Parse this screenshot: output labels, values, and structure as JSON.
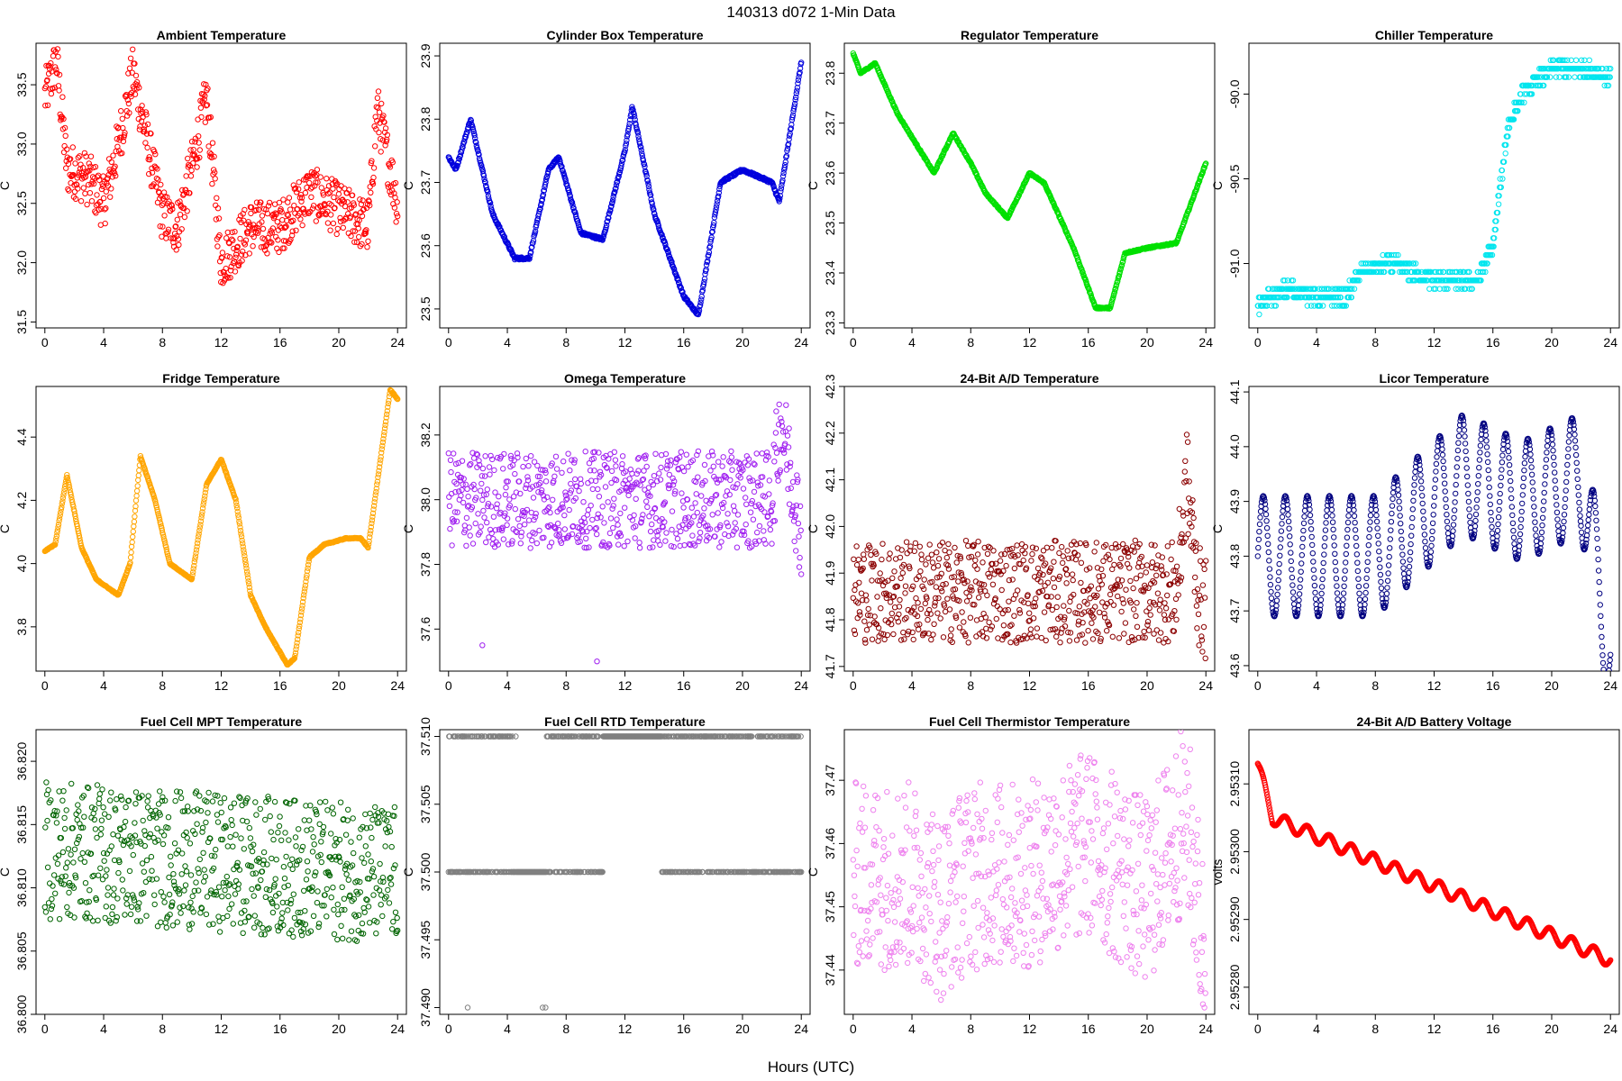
{
  "figure_title": "140313   d072   1-Min Data",
  "shared_xlabel": "Hours (UTC)",
  "chart_data": [
    {
      "type": "scatter",
      "title": "Ambient Temperature",
      "ylabel": "C",
      "color": "#ff0000",
      "xlim": [
        -0.6,
        24.6
      ],
      "ylim": [
        31.45,
        33.85
      ],
      "xticks": [
        0,
        4,
        8,
        12,
        16,
        20,
        24
      ],
      "yticks": [
        "31.5",
        "32.0",
        "32.5",
        "33.0",
        "33.5"
      ],
      "anchors": [
        [
          0,
          33.4
        ],
        [
          0.8,
          33.7
        ],
        [
          1.5,
          32.8
        ],
        [
          3,
          32.7
        ],
        [
          4,
          32.5
        ],
        [
          5,
          33.0
        ],
        [
          6,
          33.6
        ],
        [
          7,
          33.0
        ],
        [
          8,
          32.4
        ],
        [
          9,
          32.3
        ],
        [
          10,
          32.8
        ],
        [
          11,
          33.4
        ],
        [
          12,
          32.0
        ],
        [
          14,
          32.3
        ],
        [
          16,
          32.3
        ],
        [
          18,
          32.6
        ],
        [
          20,
          32.45
        ],
        [
          22,
          32.3
        ],
        [
          22.6,
          33.3
        ],
        [
          24,
          32.5
        ]
      ],
      "noise": 0.45,
      "outliers": 0.12
    },
    {
      "type": "scatter",
      "title": "Cylinder Box Temperature",
      "ylabel": "C",
      "color": "#0000dd",
      "xlim": [
        -0.6,
        24.6
      ],
      "ylim": [
        23.47,
        23.92
      ],
      "xticks": [
        0,
        4,
        8,
        12,
        16,
        20,
        24
      ],
      "yticks": [
        "23.5",
        "23.6",
        "23.7",
        "23.8",
        "23.9"
      ],
      "anchors": [
        [
          0,
          23.74
        ],
        [
          0.5,
          23.72
        ],
        [
          1.5,
          23.8
        ],
        [
          3,
          23.65
        ],
        [
          4.5,
          23.58
        ],
        [
          5.5,
          23.58
        ],
        [
          6.8,
          23.72
        ],
        [
          7.5,
          23.74
        ],
        [
          9,
          23.62
        ],
        [
          10.5,
          23.61
        ],
        [
          12,
          23.75
        ],
        [
          12.5,
          23.82
        ],
        [
          14,
          23.65
        ],
        [
          16,
          23.52
        ],
        [
          17,
          23.49
        ],
        [
          18.5,
          23.7
        ],
        [
          20,
          23.72
        ],
        [
          22,
          23.7
        ],
        [
          22.5,
          23.67
        ],
        [
          24,
          23.89
        ]
      ],
      "noise": 0.004,
      "outliers": 0.0
    },
    {
      "type": "scatter",
      "title": "Regulator Temperature",
      "ylabel": "C",
      "color": "#00e000",
      "xlim": [
        -0.6,
        24.6
      ],
      "ylim": [
        23.29,
        23.86
      ],
      "xticks": [
        0,
        4,
        8,
        12,
        16,
        20,
        24
      ],
      "yticks": [
        "23.3",
        "23.4",
        "23.5",
        "23.6",
        "23.7",
        "23.8"
      ],
      "anchors": [
        [
          0,
          23.84
        ],
        [
          0.5,
          23.8
        ],
        [
          1.5,
          23.82
        ],
        [
          3,
          23.72
        ],
        [
          5.5,
          23.6
        ],
        [
          6.8,
          23.68
        ],
        [
          8,
          23.62
        ],
        [
          9,
          23.56
        ],
        [
          10.5,
          23.51
        ],
        [
          12,
          23.6
        ],
        [
          13,
          23.58
        ],
        [
          15,
          23.45
        ],
        [
          16.5,
          23.33
        ],
        [
          17.5,
          23.33
        ],
        [
          18.5,
          23.44
        ],
        [
          20,
          23.45
        ],
        [
          22,
          23.46
        ],
        [
          24,
          23.62
        ]
      ],
      "noise": 0.003,
      "outliers": 0.0
    },
    {
      "type": "scatter",
      "title": "Chiller Temperature",
      "ylabel": "C",
      "color": "#00e5ee",
      "xlim": [
        -0.6,
        24.6
      ],
      "ylim": [
        -91.38,
        -89.7
      ],
      "xticks": [
        0,
        4,
        8,
        12,
        16,
        20,
        24
      ],
      "yticks": [
        "-91.0",
        "-90.5",
        "-90.0"
      ],
      "anchors": [
        [
          0,
          -91.25
        ],
        [
          2,
          -91.15
        ],
        [
          4,
          -91.2
        ],
        [
          6,
          -91.2
        ],
        [
          7,
          -91.05
        ],
        [
          9,
          -91.0
        ],
        [
          12,
          -91.1
        ],
        [
          15,
          -91.1
        ],
        [
          16,
          -90.9
        ],
        [
          17,
          -90.2
        ],
        [
          18,
          -90.0
        ],
        [
          20,
          -89.85
        ],
        [
          22,
          -89.85
        ],
        [
          24,
          -89.9
        ]
      ],
      "noise": 0.09,
      "outliers": 0.0,
      "quant": 0.05
    },
    {
      "type": "scatter",
      "title": "Fridge Temperature",
      "ylabel": "C",
      "color": "#ffa500",
      "xlim": [
        -0.6,
        24.6
      ],
      "ylim": [
        3.66,
        4.56
      ],
      "xticks": [
        0,
        4,
        8,
        12,
        16,
        20,
        24
      ],
      "yticks": [
        "3.8",
        "4.0",
        "4.2",
        "4.4"
      ],
      "anchors": [
        [
          0,
          4.04
        ],
        [
          0.7,
          4.06
        ],
        [
          1.5,
          4.28
        ],
        [
          2.5,
          4.05
        ],
        [
          3.5,
          3.95
        ],
        [
          5,
          3.9
        ],
        [
          5.8,
          4.0
        ],
        [
          6.5,
          4.34
        ],
        [
          7.5,
          4.2
        ],
        [
          8.5,
          4.0
        ],
        [
          10,
          3.95
        ],
        [
          11,
          4.25
        ],
        [
          12,
          4.33
        ],
        [
          13,
          4.2
        ],
        [
          14,
          3.9
        ],
        [
          15,
          3.8
        ],
        [
          16.5,
          3.68
        ],
        [
          17,
          3.7
        ],
        [
          18,
          4.02
        ],
        [
          19,
          4.06
        ],
        [
          20.5,
          4.08
        ],
        [
          21.5,
          4.08
        ],
        [
          22,
          4.05
        ],
        [
          23.5,
          4.55
        ],
        [
          24,
          4.52
        ]
      ],
      "noise": 0.003,
      "outliers": 0.0
    },
    {
      "type": "scatter",
      "title": "Omega Temperature",
      "ylabel": "C",
      "color": "#a020f0",
      "xlim": [
        -0.6,
        24.6
      ],
      "ylim": [
        37.47,
        38.35
      ],
      "xticks": [
        0,
        4,
        8,
        12,
        16,
        20,
        24
      ],
      "yticks": [
        "37.6",
        "37.8",
        "38.0",
        "38.2"
      ],
      "anchors": [
        [
          0,
          38.0
        ],
        [
          6,
          38.0
        ],
        [
          12,
          38.0
        ],
        [
          18,
          38.0
        ],
        [
          22,
          38.0
        ],
        [
          22.6,
          38.25
        ],
        [
          24,
          37.9
        ]
      ],
      "noise": 0.3,
      "outliers": 0.0,
      "extra": [
        [
          2.3,
          37.55
        ],
        [
          10.1,
          37.5
        ]
      ]
    },
    {
      "type": "scatter",
      "title": "24-Bit A/D Temperature",
      "ylabel": "C",
      "color": "#8b0000",
      "xlim": [
        -0.6,
        24.6
      ],
      "ylim": [
        41.69,
        42.3
      ],
      "xticks": [
        0,
        4,
        8,
        12,
        16,
        20,
        24
      ],
      "yticks": [
        "41.7",
        "41.8",
        "41.9",
        "42.0",
        "42.1",
        "42.2",
        "42.3"
      ],
      "anchors": [
        [
          0,
          41.86
        ],
        [
          22,
          41.86
        ],
        [
          22.7,
          42.1
        ],
        [
          23.5,
          41.85
        ],
        [
          24,
          41.82
        ]
      ],
      "noise": 0.22,
      "outliers": 0.0
    },
    {
      "type": "scatter",
      "title": "Licor Temperature",
      "ylabel": "C",
      "color": "#000080",
      "xlim": [
        -0.6,
        24.6
      ],
      "ylim": [
        43.59,
        44.11
      ],
      "xticks": [
        0,
        4,
        8,
        12,
        16,
        20,
        24
      ],
      "yticks": [
        "43.6",
        "43.7",
        "43.8",
        "43.9",
        "44.0",
        "44.1"
      ],
      "wave": {
        "base": 43.83,
        "amp": 0.11,
        "period": 1.5
      },
      "anchors": [
        [
          0,
          43.8
        ],
        [
          8,
          43.8
        ],
        [
          14,
          43.95
        ],
        [
          18,
          43.9
        ],
        [
          22,
          43.95
        ],
        [
          23.5,
          43.7
        ],
        [
          24,
          43.62
        ]
      ],
      "noise": 0.0,
      "outliers": 0.0
    },
    {
      "type": "scatter",
      "title": "Fuel Cell MPT Temperature",
      "ylabel": "C",
      "color": "#006400",
      "xlim": [
        -0.6,
        24.6
      ],
      "ylim": [
        36.8,
        36.8225
      ],
      "xticks": [
        0,
        4,
        8,
        12,
        16,
        20,
        24
      ],
      "yticks": [
        "36.800",
        "36.805",
        "36.810",
        "36.815",
        "36.820"
      ],
      "anchors": [
        [
          0,
          36.813
        ],
        [
          24,
          36.811
        ]
      ],
      "noise": 0.011,
      "outliers": 0.0
    },
    {
      "type": "scatter",
      "title": "Fuel Cell RTD Temperature",
      "ylabel": "C",
      "color": "#808080",
      "xlim": [
        -0.6,
        24.6
      ],
      "ylim": [
        37.4895,
        37.5105
      ],
      "xticks": [
        0,
        4,
        8,
        12,
        16,
        20,
        24
      ],
      "yticks": [
        "37.490",
        "37.495",
        "37.500",
        "37.505",
        "37.510"
      ],
      "levels": [
        37.5,
        37.51
      ],
      "extra": [
        [
          1.3,
          37.49
        ],
        [
          6.4,
          37.49
        ],
        [
          6.6,
          37.49
        ]
      ]
    },
    {
      "type": "scatter",
      "title": "Fuel Cell Thermistor Temperature",
      "ylabel": "C",
      "color": "#ee82ee",
      "xlim": [
        -0.6,
        24.6
      ],
      "ylim": [
        37.433,
        37.478
      ],
      "xticks": [
        0,
        4,
        8,
        12,
        16,
        20,
        24
      ],
      "yticks": [
        "37.44",
        "37.45",
        "37.46",
        "37.47"
      ],
      "anchors": [
        [
          0,
          37.455
        ],
        [
          4,
          37.455
        ],
        [
          6,
          37.45
        ],
        [
          8,
          37.455
        ],
        [
          12,
          37.455
        ],
        [
          16,
          37.46
        ],
        [
          20,
          37.452
        ],
        [
          22.7,
          37.465
        ],
        [
          24,
          37.44
        ]
      ],
      "noise": 0.03,
      "outliers": 0.0
    },
    {
      "type": "scatter",
      "title": "24-Bit A/D Battery Voltage",
      "ylabel": "volts",
      "color": "#ff0000",
      "xlim": [
        -0.6,
        24.6
      ],
      "ylim": [
        2.95276,
        2.95318
      ],
      "xticks": [
        0,
        4,
        8,
        12,
        16,
        20,
        24
      ],
      "yticks": [
        "2.95280",
        "2.95290",
        "2.95300",
        "2.95310"
      ],
      "wave": {
        "base": 0.0,
        "amp": 1e-05,
        "period": 1.5
      },
      "anchors": [
        [
          0,
          2.95313
        ],
        [
          1,
          2.95305
        ],
        [
          24,
          2.95284
        ]
      ],
      "noise": 0.0,
      "outliers": 0.0
    }
  ]
}
